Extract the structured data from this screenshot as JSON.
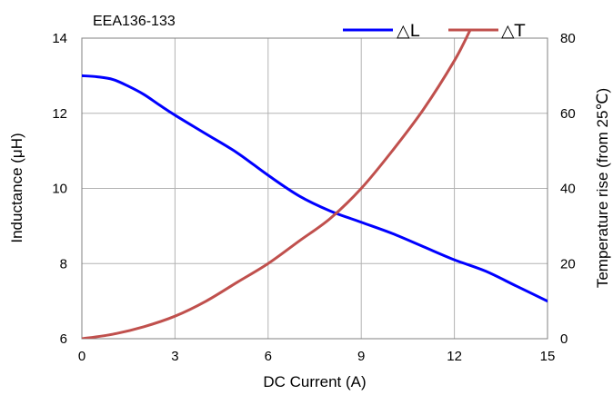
{
  "chart_data": {
    "type": "line",
    "title": "EEA136-133",
    "xlabel": "DC Current (A)",
    "ylabel": "Inductance (μH)",
    "y2label": "Temperature rise (from 25℃)",
    "xlim": [
      0,
      15
    ],
    "ylim": [
      6,
      14
    ],
    "y2lim": [
      0,
      80
    ],
    "x_ticks": [
      "0",
      "3",
      "6",
      "9",
      "12",
      "15"
    ],
    "y_ticks": [
      "6",
      "8",
      "10",
      "12",
      "14"
    ],
    "y2_ticks": [
      "0",
      "20",
      "40",
      "60",
      "80"
    ],
    "grid": true,
    "legend_position": "top-right",
    "series": [
      {
        "name": "△L",
        "axis": "left",
        "color": "#0000ff",
        "x": [
          0,
          0.5,
          1,
          1.5,
          2,
          2.5,
          3,
          4,
          5,
          6,
          7,
          8,
          9,
          10,
          11,
          12,
          13,
          14,
          15
        ],
        "y": [
          13.0,
          12.97,
          12.9,
          12.72,
          12.5,
          12.22,
          11.95,
          11.45,
          10.95,
          10.35,
          9.8,
          9.4,
          9.1,
          8.8,
          8.45,
          8.1,
          7.8,
          7.4,
          7.0
        ]
      },
      {
        "name": "△T",
        "axis": "right",
        "color": "#c0504d",
        "x": [
          0,
          1,
          2,
          3,
          4,
          5,
          6,
          7,
          8,
          9,
          10,
          11,
          12,
          12.5
        ],
        "y": [
          0,
          1.2,
          3.2,
          6,
          10,
          15,
          20,
          26,
          32,
          40,
          50,
          61,
          74,
          82
        ]
      }
    ]
  }
}
